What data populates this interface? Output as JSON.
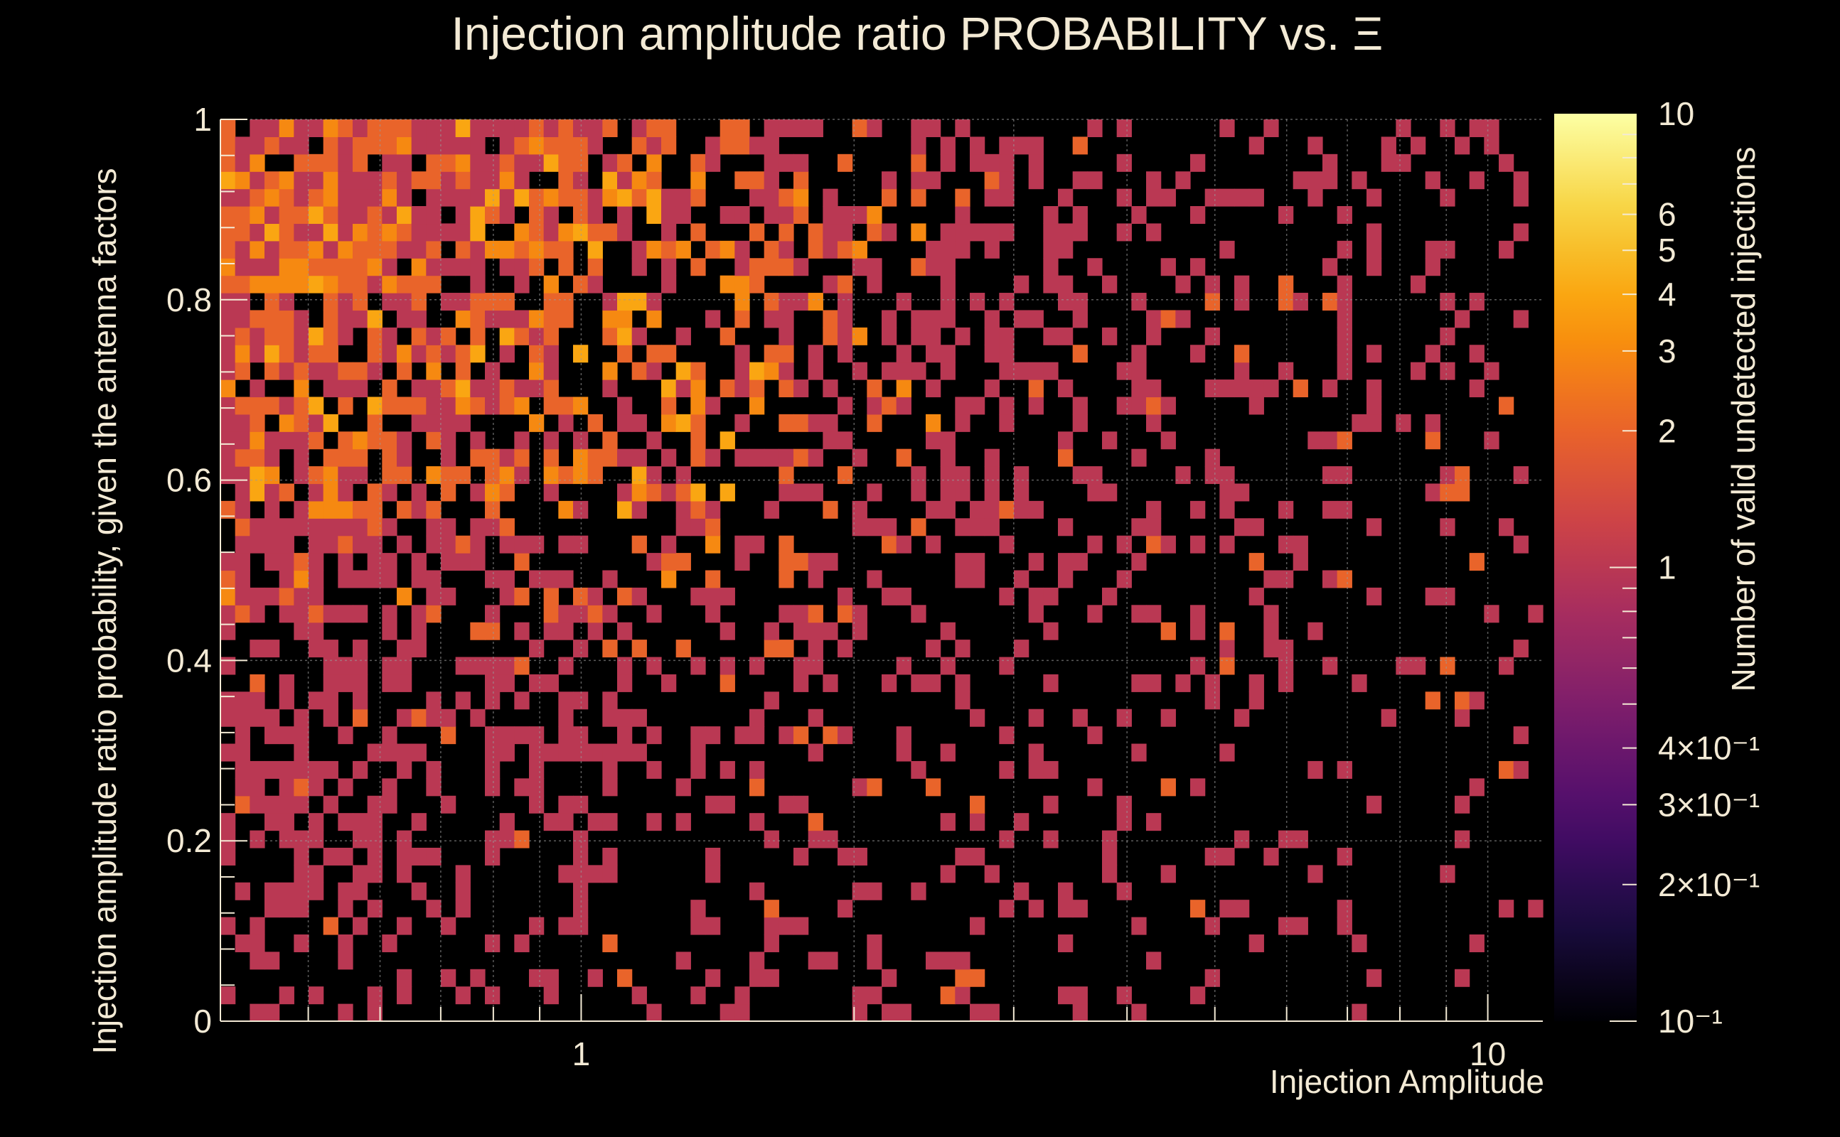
{
  "chart_data": {
    "type": "heatmap",
    "title": "Injection amplitude ratio PROBABILITY vs.  Ξ",
    "xlabel": "Injection Amplitude",
    "ylabel": "Injection amplitude ratio probability, given the antenna factors",
    "colorbar_label": "Number of valid undetected injections",
    "x_scale": "log",
    "xlim": [
      0.4,
      11.5
    ],
    "ylim": [
      0,
      1
    ],
    "x_ticks": [
      {
        "value": 1,
        "label": "1"
      },
      {
        "value": 10,
        "label": "10"
      }
    ],
    "y_ticks": [
      {
        "value": 0,
        "label": "0"
      },
      {
        "value": 0.2,
        "label": "0.2"
      },
      {
        "value": 0.4,
        "label": "0.4"
      },
      {
        "value": 0.6,
        "label": "0.6"
      },
      {
        "value": 0.8,
        "label": "0.8"
      },
      {
        "value": 1,
        "label": "1"
      }
    ],
    "z_scale": "log",
    "zlim": [
      0.1,
      10
    ],
    "colorbar_ticks": [
      {
        "value": 10,
        "label": "10"
      },
      {
        "value": 6,
        "label": "6"
      },
      {
        "value": 5,
        "label": "5"
      },
      {
        "value": 4,
        "label": "4"
      },
      {
        "value": 3,
        "label": "3"
      },
      {
        "value": 2,
        "label": "2"
      },
      {
        "value": 1,
        "label": "1"
      },
      {
        "value": 0.4,
        "label": "4×10⁻¹"
      },
      {
        "value": 0.3,
        "label": "3×10⁻¹"
      },
      {
        "value": 0.2,
        "label": "2×10⁻¹"
      },
      {
        "value": 0.1,
        "label": "10⁻¹"
      }
    ],
    "grid": true,
    "colormap": [
      "#000004",
      "#1b0c41",
      "#4a0c6b",
      "#781c6d",
      "#a52c60",
      "#cf4446",
      "#ed6925",
      "#fb9b06",
      "#f7d13d",
      "#fcffa4"
    ],
    "background": "#000000",
    "text_color": "#f3ead5",
    "bins": {
      "nx": 90,
      "ny": 52
    },
    "counts_summary": "Counts range 1–4 per bin; densest (2–4 counts) for amplitudes 0.4–1.5 and probability 0.6–1.0; sparse single-count bins at high amplitude and low probability."
  }
}
